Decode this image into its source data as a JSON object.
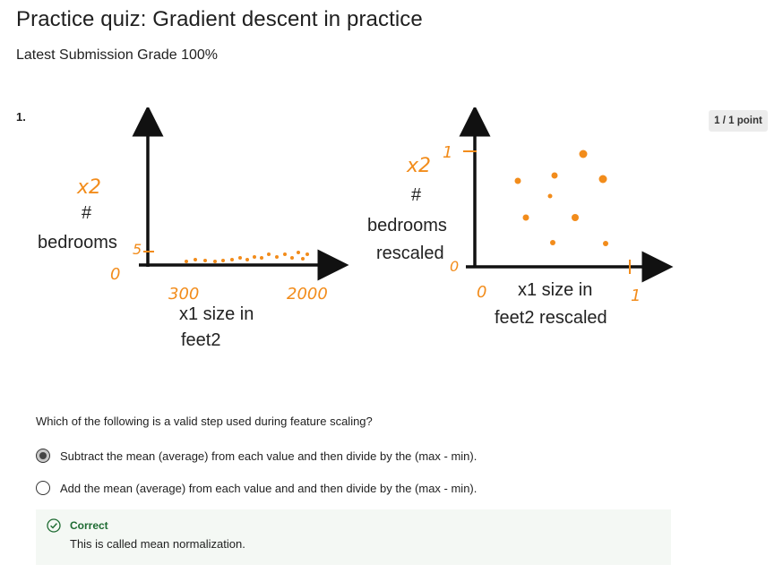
{
  "header": {
    "title": "Practice quiz: Gradient descent in practice",
    "grade": "Latest Submission Grade 100%"
  },
  "question": {
    "number": "1.",
    "points": "1 / 1 point",
    "prompt": "Which of the following is a valid step used during feature scaling?",
    "options": [
      {
        "label": "Subtract the mean (average) from each value and then divide by the (max - min).",
        "selected": true
      },
      {
        "label": "Add the mean (average) from each value and and then divide by the (max - min).",
        "selected": false
      }
    ],
    "feedback": {
      "status": "Correct",
      "message": "This is called mean normalization.",
      "icon": "check-circle-icon"
    }
  },
  "figure": {
    "left": {
      "y_var": "x2",
      "y_label_hash": "#",
      "y_label_word": "bedrooms",
      "y_tick_top": "5",
      "origin": "0",
      "x_tick_min": "300",
      "x_tick_max": "2000",
      "x_label_line1": "x1 size in",
      "x_label_line2": "feet2"
    },
    "right": {
      "y_var": "x2",
      "y_tick_top": "1",
      "y_label_hash": "#",
      "y_label_word": "bedrooms",
      "y_label_word2": "rescaled",
      "y_tick_zero": "0",
      "origin": "0",
      "x_tick_max": "1",
      "x_label_line1": "x1 size in",
      "x_label_line2": "feet2 rescaled"
    }
  },
  "colors": {
    "handwriting": "#f28c1b",
    "correct": "#1e6b32",
    "feedback_bg": "#f4f8f4"
  }
}
